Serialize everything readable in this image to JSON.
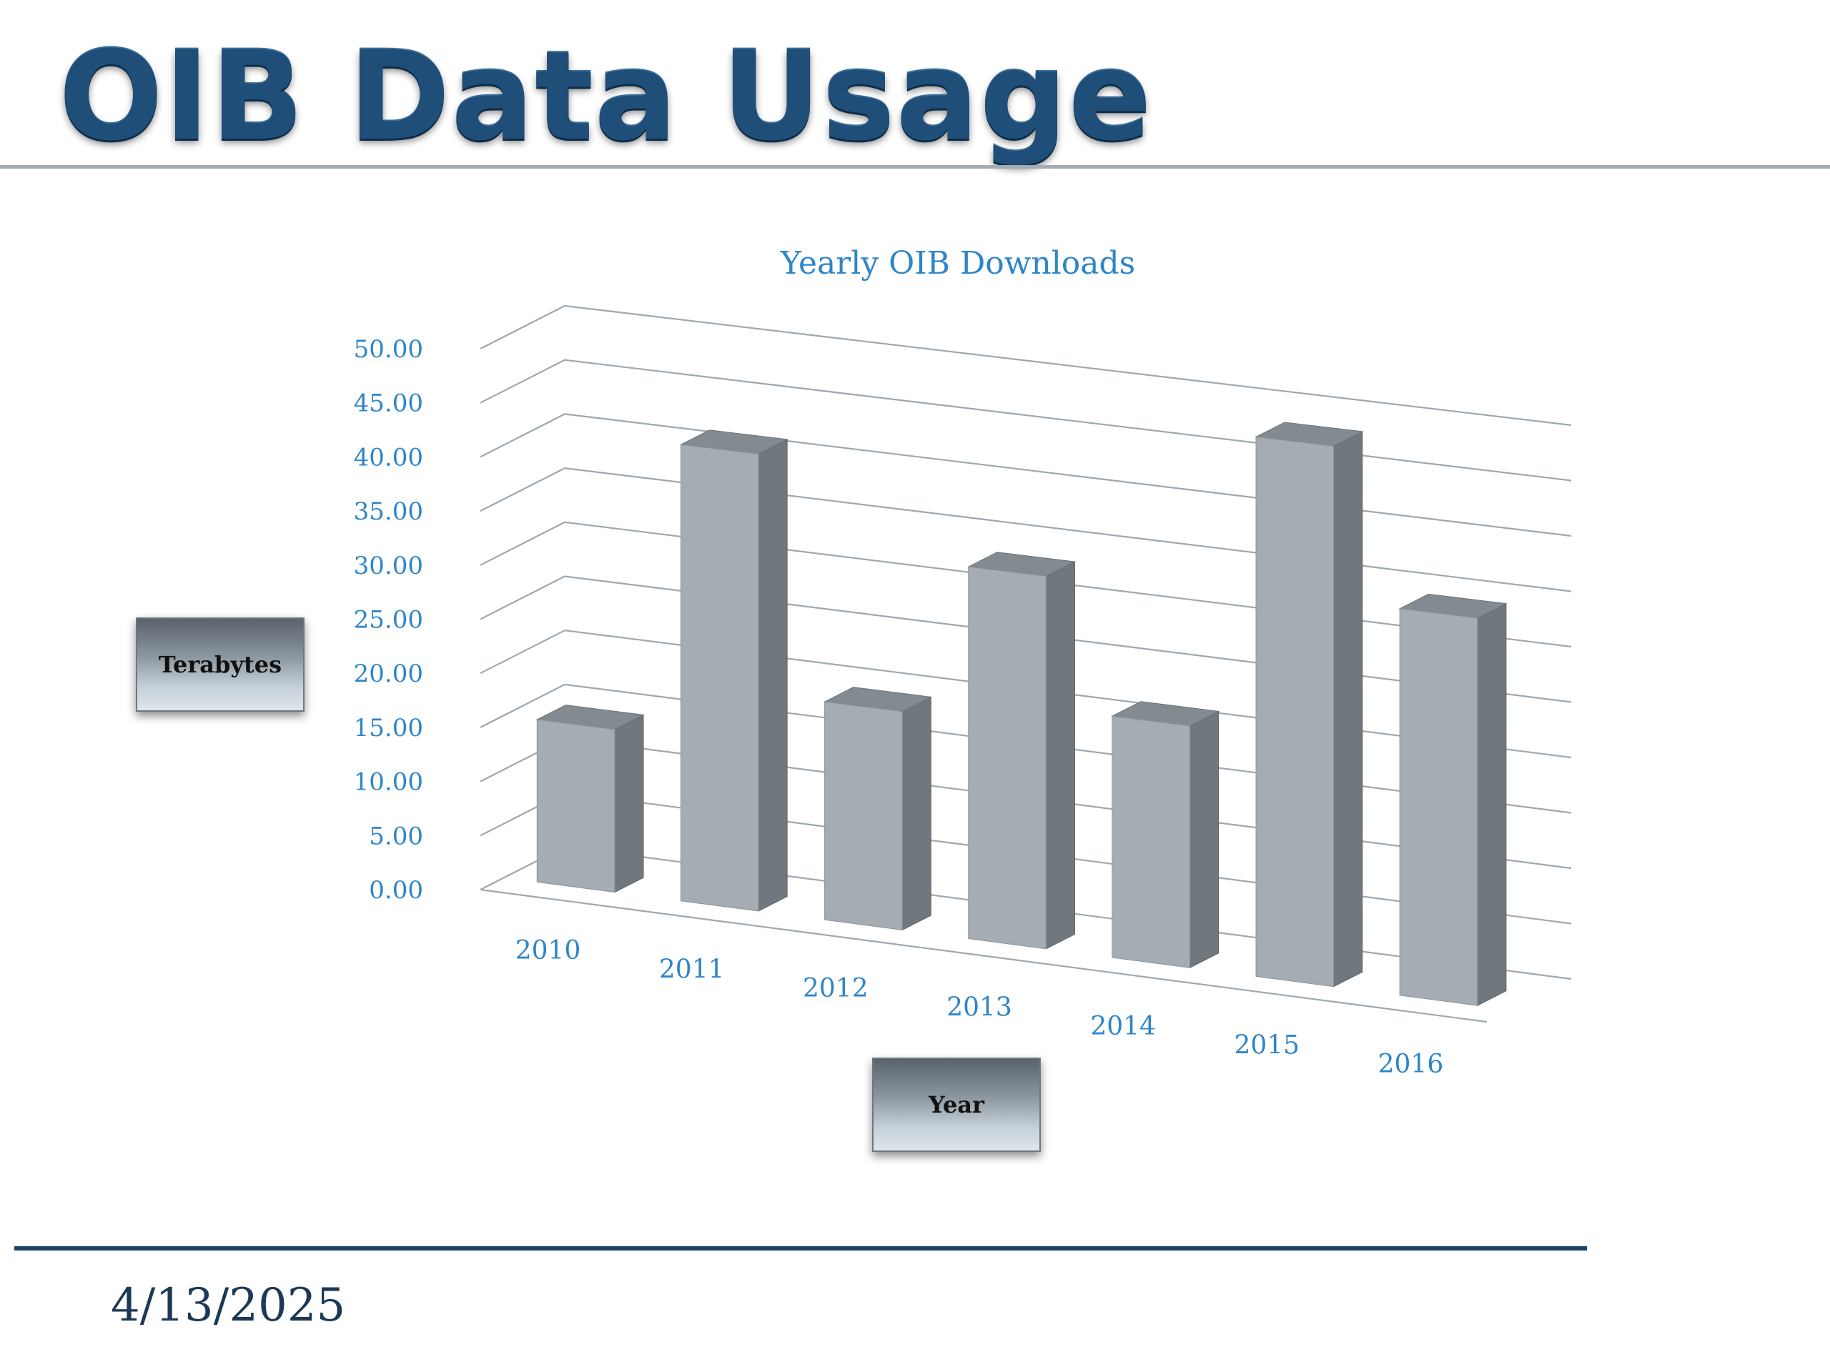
{
  "slide": {
    "title": "OIB Data Usage",
    "date": "4/13/2025"
  },
  "colors": {
    "title": "#1f4e79",
    "axis_text": "#2e86c8",
    "bar_front": "#a5adb3",
    "bar_side": "#70787e",
    "bar_top": "#838b91",
    "gridline": "#9ea7ae"
  },
  "chart_data": {
    "type": "bar",
    "title": "Yearly OIB Downloads",
    "xlabel": "Year",
    "ylabel": "Terabytes",
    "ylim": [
      0,
      50
    ],
    "yticks": [
      "0.00",
      "5.00",
      "10.00",
      "15.00",
      "20.00",
      "25.00",
      "30.00",
      "35.00",
      "40.00",
      "45.00",
      "50.00"
    ],
    "categories": [
      "2010",
      "2011",
      "2012",
      "2013",
      "2014",
      "2015",
      "2016"
    ],
    "values": [
      15,
      42,
      20,
      34,
      22,
      49,
      35
    ],
    "grid": true,
    "legend": "none",
    "style": "3d-column"
  }
}
